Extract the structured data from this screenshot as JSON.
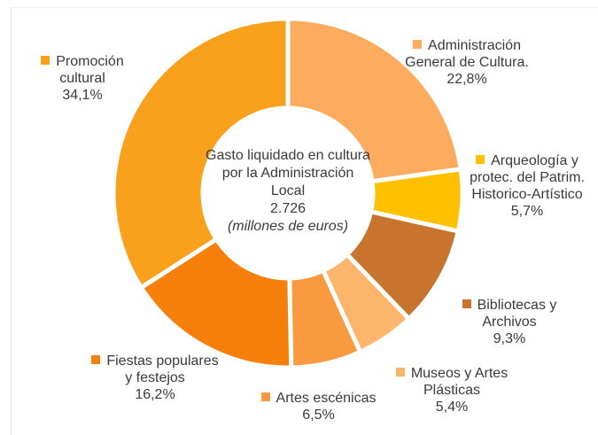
{
  "chart_data": {
    "type": "pie",
    "title": "Gasto liquidado en cultura por la Administración Local",
    "total_label": "2.726",
    "unit": "(millones de euros)",
    "categories": [
      "Administración General de Cultura.",
      "Arqueología y protec. del Patrim. Historico-Artístico",
      "Bibliotecas y Archivos",
      "Museos y Artes Plásticas",
      "Artes escénicas",
      "Fiestas populares y festejos",
      "Promoción cultural"
    ],
    "values": [
      22.8,
      5.7,
      9.3,
      5.4,
      6.5,
      16.2,
      34.1
    ],
    "value_labels": [
      "22,8%",
      "5,7%",
      "9,3%",
      "5,4%",
      "6,5%",
      "16,2%",
      "34,1%"
    ],
    "colors": [
      "#fdab5e",
      "#ffc000",
      "#c8742f",
      "#fdb46b",
      "#f99a40",
      "#f57f0a",
      "#f9a11d"
    ]
  }
}
